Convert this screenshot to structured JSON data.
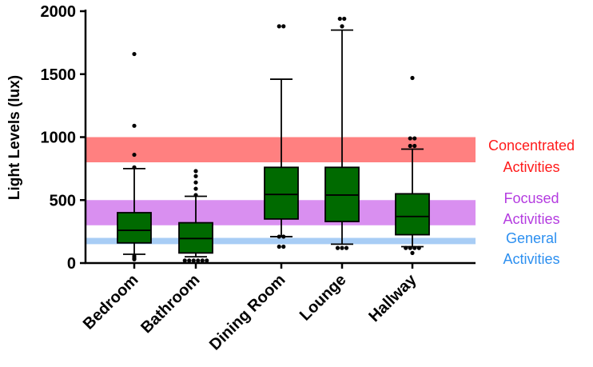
{
  "chart_data": {
    "type": "boxplot",
    "ylabel": "Light Levels (lux)",
    "ylim": [
      0,
      2000
    ],
    "yticks": [
      0,
      500,
      1000,
      1500,
      2000
    ],
    "categories": [
      "Bedroom",
      "Bathroom",
      "Dining Room",
      "Lounge",
      "Hallway"
    ],
    "bands": [
      {
        "name": "Concentrated Activities",
        "line1": "Concentrated",
        "line2": "Activities",
        "range": [
          800,
          1000
        ],
        "color": "#ff8080",
        "text_color": "#ff1a1a"
      },
      {
        "name": "Focused Activities",
        "line1": "Focused",
        "line2": "Activities",
        "range": [
          300,
          500
        ],
        "color": "#d98ff0",
        "text_color": "#b43ce0"
      },
      {
        "name": "General Activities",
        "line1": "General",
        "line2": "Activities",
        "range": [
          150,
          200
        ],
        "color": "#a8cdf5",
        "text_color": "#2c8ff0"
      }
    ],
    "boxes": [
      {
        "category": "Bedroom",
        "whisker_low": 70,
        "q1": 160,
        "median": 260,
        "q3": 400,
        "whisker_high": 750,
        "outliers": [
          40,
          55,
          30,
          760,
          860,
          1090,
          1660
        ]
      },
      {
        "category": "Bathroom",
        "whisker_low": 50,
        "q1": 80,
        "median": 195,
        "q3": 320,
        "whisker_high": 530,
        "outliers": [
          20,
          20,
          20,
          20,
          20,
          20,
          540,
          590,
          640,
          690,
          730
        ]
      },
      {
        "category": "Dining Room",
        "whisker_low": 210,
        "q1": 350,
        "median": 545,
        "q3": 760,
        "whisker_high": 1460,
        "outliers": [
          130,
          130,
          210,
          210,
          1880,
          1880
        ]
      },
      {
        "category": "Lounge",
        "whisker_low": 150,
        "q1": 330,
        "median": 540,
        "q3": 760,
        "whisker_high": 1850,
        "outliers": [
          120,
          120,
          120,
          1880,
          1940,
          1940
        ]
      },
      {
        "category": "Hallway",
        "whisker_low": 130,
        "q1": 225,
        "median": 370,
        "q3": 550,
        "whisker_high": 905,
        "outliers": [
          80,
          120,
          120,
          120,
          120,
          930,
          930,
          990,
          990,
          1470
        ]
      }
    ],
    "box_color": "#006a00"
  }
}
